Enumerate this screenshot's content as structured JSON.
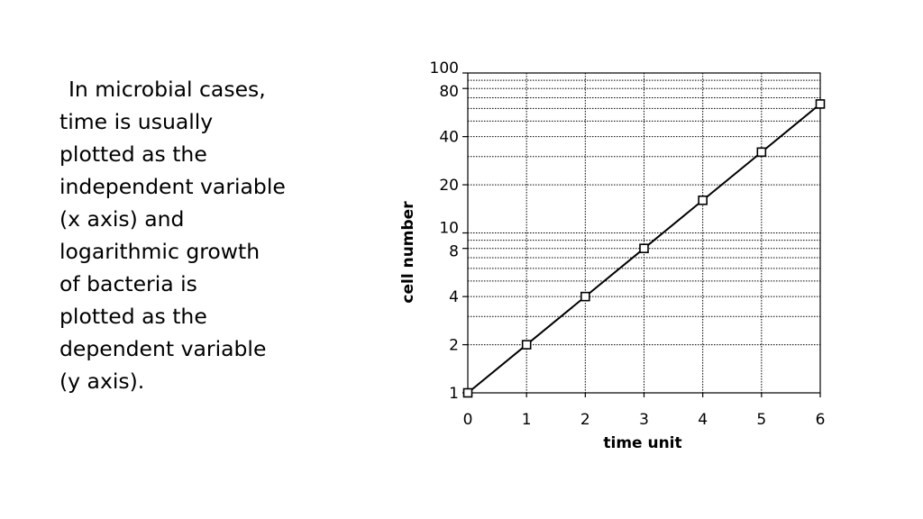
{
  "explanation": {
    "lines": [
      "In microbial cases,",
      "time is usually",
      "plotted as the",
      "independent variable",
      "(x axis) and",
      "logarithmic growth",
      "of bacteria is",
      "plotted as the",
      "dependent variable",
      "(y axis)."
    ]
  },
  "chart_data": {
    "type": "line",
    "title": "",
    "xlabel": "time unit",
    "ylabel": "cell number",
    "x": [
      0,
      1,
      2,
      3,
      4,
      5,
      6
    ],
    "y": [
      1,
      2,
      4,
      8,
      16,
      32,
      64
    ],
    "xlim": [
      0,
      6
    ],
    "ylim": [
      1,
      100
    ],
    "y_scale": "log",
    "x_ticks": [
      "0",
      "1",
      "2",
      "3",
      "4",
      "5",
      "6"
    ],
    "y_tick_values": [
      1,
      2,
      4,
      8,
      10,
      20,
      40,
      80,
      100
    ],
    "y_ticks": [
      "1",
      "2",
      "4",
      "8",
      "10",
      "20",
      "40",
      "80",
      "100"
    ],
    "grid": true,
    "marker": "square",
    "line_color": "#000000"
  }
}
